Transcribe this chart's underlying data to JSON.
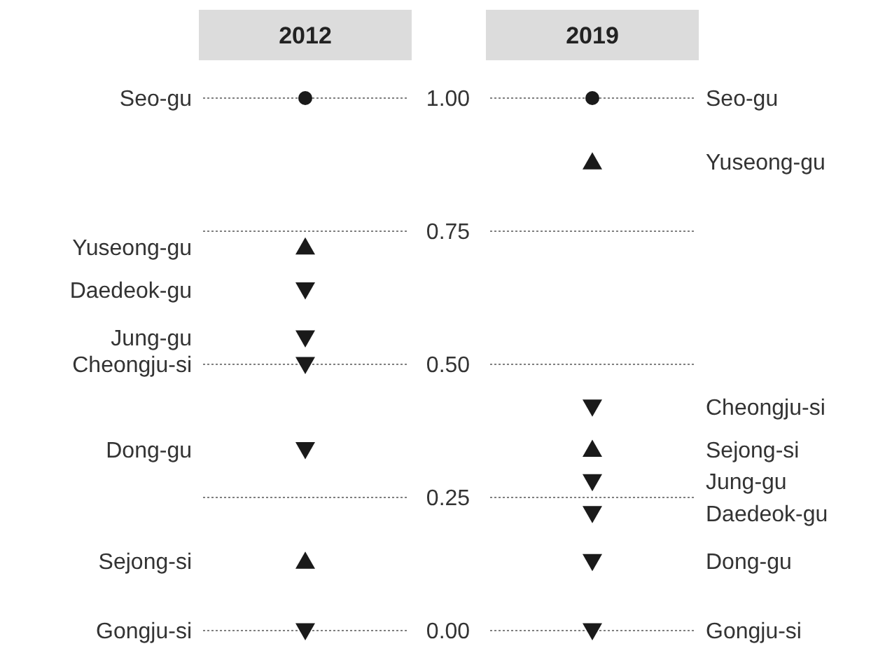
{
  "chart_data": {
    "type": "scatter",
    "categories": [
      "2012",
      "2019"
    ],
    "ylim": [
      0,
      1
    ],
    "yticks": [
      {
        "value": 0,
        "label": "0.00"
      },
      {
        "value": 0.25,
        "label": "0.25"
      },
      {
        "value": 0.5,
        "label": "0.50"
      },
      {
        "value": 0.75,
        "label": "0.75"
      },
      {
        "value": 1,
        "label": "1.00"
      }
    ],
    "grid": "y",
    "series": [
      {
        "name": "Seo-gu",
        "color": "#1a1a1a",
        "marker": "circle",
        "values": [
          1.0,
          1.0
        ]
      },
      {
        "name": "Yuseong-gu",
        "color": "#1a1a1a",
        "marker": "triangle",
        "values": [
          0.72,
          0.88
        ]
      },
      {
        "name": "Daedeok-gu",
        "color": "#1a1a1a",
        "marker": "triangle-down",
        "values": [
          0.64,
          0.22
        ]
      },
      {
        "name": "Jung-gu",
        "color": "#1a1a1a",
        "marker": "triangle-down",
        "values": [
          0.55,
          0.28
        ]
      },
      {
        "name": "Cheongju-si",
        "color": "#1a1a1a",
        "marker": "triangle-down",
        "values": [
          0.5,
          0.42
        ]
      },
      {
        "name": "Dong-gu",
        "color": "#1a1a1a",
        "marker": "triangle-down",
        "values": [
          0.34,
          0.13
        ]
      },
      {
        "name": "Sejong-si",
        "color": "#1a1a1a",
        "marker": "triangle",
        "values": [
          0.13,
          0.34
        ]
      },
      {
        "name": "Gongju-si",
        "color": "#1a1a1a",
        "marker": "triangle-down",
        "values": [
          0.0,
          0.0
        ]
      }
    ]
  }
}
